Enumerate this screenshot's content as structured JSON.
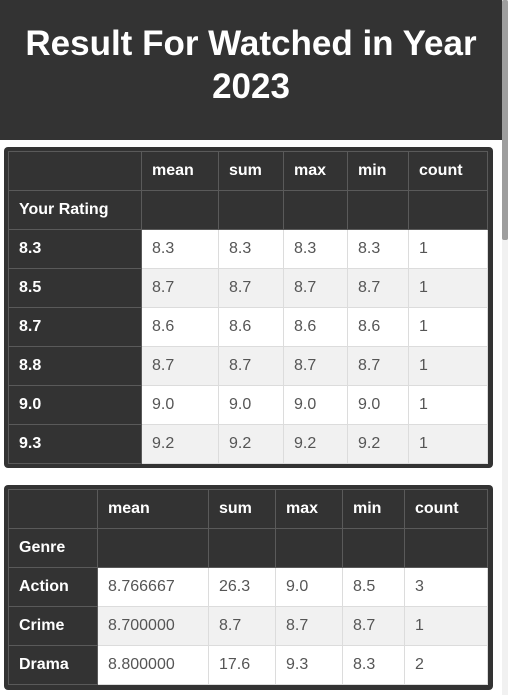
{
  "header": {
    "title": "Result For Watched in Year 2023"
  },
  "table1": {
    "columns": [
      "mean",
      "sum",
      "max",
      "min",
      "count"
    ],
    "index_name": "Your Rating",
    "rows": [
      {
        "key": "8.3",
        "mean": "8.3",
        "sum": "8.3",
        "max": "8.3",
        "min": "8.3",
        "count": "1"
      },
      {
        "key": "8.5",
        "mean": "8.7",
        "sum": "8.7",
        "max": "8.7",
        "min": "8.7",
        "count": "1"
      },
      {
        "key": "8.7",
        "mean": "8.6",
        "sum": "8.6",
        "max": "8.6",
        "min": "8.6",
        "count": "1"
      },
      {
        "key": "8.8",
        "mean": "8.7",
        "sum": "8.7",
        "max": "8.7",
        "min": "8.7",
        "count": "1"
      },
      {
        "key": "9.0",
        "mean": "9.0",
        "sum": "9.0",
        "max": "9.0",
        "min": "9.0",
        "count": "1"
      },
      {
        "key": "9.3",
        "mean": "9.2",
        "sum": "9.2",
        "max": "9.2",
        "min": "9.2",
        "count": "1"
      }
    ]
  },
  "table2": {
    "columns": [
      "mean",
      "sum",
      "max",
      "min",
      "count"
    ],
    "index_name": "Genre",
    "rows": [
      {
        "key": "Action",
        "mean": "8.766667",
        "sum": "26.3",
        "max": "9.0",
        "min": "8.5",
        "count": "3"
      },
      {
        "key": "Crime",
        "mean": "8.700000",
        "sum": "8.7",
        "max": "8.7",
        "min": "8.7",
        "count": "1"
      },
      {
        "key": "Drama",
        "mean": "8.800000",
        "sum": "17.6",
        "max": "9.3",
        "min": "8.3",
        "count": "2"
      }
    ]
  }
}
